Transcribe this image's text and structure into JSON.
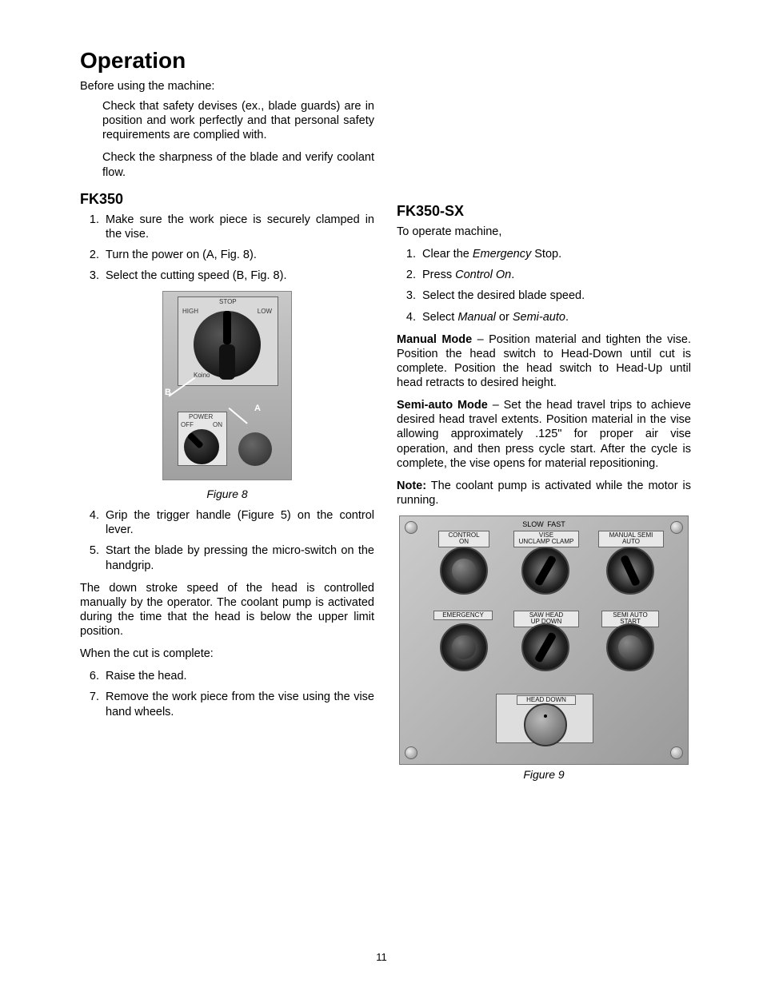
{
  "heading": "Operation",
  "intro_line": "Before using the machine:",
  "intro_checks": [
    "Check that safety devises (ex., blade guards) are in position and work perfectly and that personal safety requirements are complied with.",
    "Check the sharpness of the blade and verify coolant flow."
  ],
  "fk350": {
    "heading": "FK350",
    "steps_a": [
      "Make sure the work piece is securely clamped in the vise.",
      "Turn the power on (A, Fig. 8).",
      "Select the cutting speed (B, Fig. 8)."
    ],
    "figure8": {
      "caption": "Figure 8",
      "labels": {
        "stop": "STOP",
        "high": "HIGH",
        "low": "LOW",
        "power": "POWER",
        "off": "OFF",
        "on": "ON",
        "brand": "Koino",
        "markA": "A",
        "markB": "B"
      }
    },
    "steps_b_start": 4,
    "steps_b": [
      "Grip the trigger handle (Figure 5) on the control lever.",
      "Start the blade by pressing the micro-switch on the handgrip."
    ],
    "mid_para": "The down stroke speed of the head is controlled manually by the operator. The coolant pump is activated during the time that the head is below the upper limit position.",
    "cut_complete": "When the cut is complete:",
    "steps_c_start": 6,
    "steps_c": [
      "Raise the head.",
      "Remove the work piece from the vise using the vise hand wheels."
    ]
  },
  "fk350sx": {
    "heading": "FK350-SX",
    "intro": "To operate machine,",
    "steps": [
      {
        "pre": "Clear the ",
        "em": "Emergency",
        "post": " Stop."
      },
      {
        "pre": "Press ",
        "em": "Control On",
        "post": "."
      },
      {
        "pre": "Select the desired blade speed.",
        "em": "",
        "post": ""
      },
      {
        "pre": "Select ",
        "em": "Manual",
        "post_mid": " or ",
        "em2": "Semi-auto",
        "post": "."
      }
    ],
    "manual_mode": {
      "label": "Manual Mode",
      "text": " – Position material and tighten the vise. Position the head switch to Head-Down until cut is complete. Position the head switch to Head-Up until head retracts to desired height."
    },
    "semi_auto": {
      "label": "Semi-auto Mode",
      "text": " – Set the head travel trips to achieve desired head travel extents. Position material in the vise allowing approximately .125\" for proper air vise operation, and then press cycle start. After the cycle is complete, the vise opens for material repositioning."
    },
    "note": {
      "label": "Note:",
      "text": " The coolant pump is activated while the motor is running."
    },
    "figure9": {
      "caption": "Figure 9",
      "labels": {
        "control_on": "CONTROL\nON",
        "vise": "VISE\nUNCLAMP  CLAMP",
        "manual_semi": "MANUAL  SEMI\nAUTO",
        "emergency": "EMERGENCY",
        "saw_head": "SAW HEAD\nUP     DOWN",
        "semi_start": "SEMI AUTO\nSTART",
        "head_down": "HEAD DOWN",
        "slow": "SLOW",
        "fast": "FAST"
      }
    }
  },
  "page_number": "11"
}
